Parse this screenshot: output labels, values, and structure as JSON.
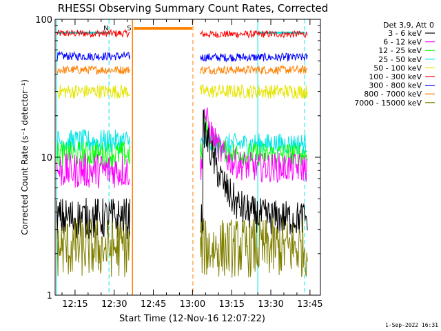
{
  "chart_data": {
    "type": "line",
    "title": "RHESSI Observing Summary Count Rates, Corrected",
    "xlabel": "Start Time (12-Nov-16 12:07:22)",
    "ylabel": "Corrected Count Rate (s⁻¹ detector⁻¹)",
    "y_scale": "log",
    "ylim": [
      1,
      100
    ],
    "xlim_minutes": [
      "12:07:22",
      "13:49:00"
    ],
    "x_ticks": [
      "12:15",
      "12:30",
      "12:45",
      "13:00",
      "13:15",
      "13:30",
      "13:45"
    ],
    "y_ticks": [
      "1",
      "10",
      "100"
    ],
    "legend_title": "Det 3,9, Att 0",
    "legend_position": "top-right",
    "timestamp": "1-Sep-2022 16:31",
    "markers": [
      {
        "label": "N",
        "time": "12:28",
        "color": "#00e5e5"
      },
      {
        "label": "S",
        "time": "12:37",
        "color": "#ff8000"
      }
    ],
    "data_gap": {
      "start": "12:37",
      "end": "13:02"
    },
    "series": [
      {
        "name": "3 - 6 keV",
        "color": "#000000",
        "segments": [
          {
            "start": "12:08",
            "end": "12:36",
            "base": 3.6,
            "noise": 0.35
          },
          {
            "start": "13:03",
            "end": "13:44",
            "base": 3.6,
            "noise": 0.3,
            "flare_peak": 17,
            "flare_time": "13:04",
            "flare_decay_min": 5
          }
        ]
      },
      {
        "name": "6 - 12 keV",
        "color": "#ff00ff",
        "segments": [
          {
            "start": "12:08",
            "end": "12:36",
            "base": 8.0,
            "noise": 0.3
          },
          {
            "start": "13:03",
            "end": "13:44",
            "base": 8.4,
            "noise": 0.25,
            "flare_peak": 23,
            "flare_time": "13:04",
            "flare_decay_min": 4
          }
        ]
      },
      {
        "name": "12 - 25 keV",
        "color": "#00ff00",
        "segments": [
          {
            "start": "12:08",
            "end": "12:36",
            "base": 10.5,
            "noise": 0.22
          },
          {
            "start": "13:03",
            "end": "13:44",
            "base": 10.5,
            "noise": 0.2,
            "flare_peak": 20,
            "flare_time": "13:04",
            "flare_decay_min": 3
          }
        ]
      },
      {
        "name": "25 - 50 keV",
        "color": "#00e5e5",
        "segments": [
          {
            "start": "12:08",
            "end": "12:36",
            "base": 13.0,
            "noise": 0.2
          },
          {
            "start": "13:03",
            "end": "13:44",
            "base": 12.5,
            "noise": 0.18
          }
        ]
      },
      {
        "name": "50 - 100 keV",
        "color": "#e5e500",
        "segments": [
          {
            "start": "12:08",
            "end": "12:36",
            "base": 30,
            "noise": 0.12
          },
          {
            "start": "13:03",
            "end": "13:44",
            "base": 30,
            "noise": 0.12
          }
        ]
      },
      {
        "name": "100 - 300 keV",
        "color": "#ff0000",
        "segments": [
          {
            "start": "12:08",
            "end": "12:36",
            "base": 79,
            "noise": 0.06
          },
          {
            "start": "13:03",
            "end": "13:44",
            "base": 78,
            "noise": 0.06
          }
        ]
      },
      {
        "name": "300 - 800 keV",
        "color": "#0000ff",
        "segments": [
          {
            "start": "12:08",
            "end": "12:36",
            "base": 54,
            "noise": 0.07
          },
          {
            "start": "13:03",
            "end": "13:44",
            "base": 53,
            "noise": 0.07
          }
        ]
      },
      {
        "name": "800 - 7000 keV",
        "color": "#ff8000",
        "segments": [
          {
            "start": "12:08",
            "end": "12:36",
            "base": 43,
            "noise": 0.07
          },
          {
            "start": "13:03",
            "end": "13:44",
            "base": 43,
            "noise": 0.07
          }
        ]
      },
      {
        "name": "7000 - 15000 keV",
        "color": "#808000",
        "segments": [
          {
            "start": "12:08",
            "end": "12:36",
            "base": 2.2,
            "noise": 0.5
          },
          {
            "start": "13:03",
            "end": "13:44",
            "base": 2.2,
            "noise": 0.5
          }
        ]
      }
    ]
  }
}
